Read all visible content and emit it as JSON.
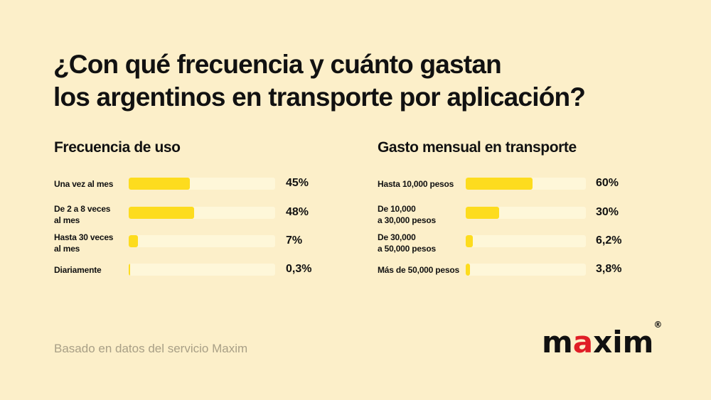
{
  "title": {
    "line1": "¿Con qué frecuencia y cuánto gastan",
    "line2": "los argentinos en transporte por aplicación?"
  },
  "colors": {
    "background": "#fcefc9",
    "bar_fill": "#fddc1e",
    "bar_track": "#fef7d9",
    "logo_accent": "#e01e26"
  },
  "chart_data": [
    {
      "type": "bar",
      "orientation": "horizontal",
      "title": "Frecuencia de uso",
      "categories": [
        "Una vez al mes",
        "De 2 a 8 veces\nal mes",
        "Hasta 30 veces\nal mes",
        "Diariamente"
      ],
      "values": [
        45,
        48,
        7,
        0.3
      ],
      "value_labels": [
        "45%",
        "48%",
        "7%",
        "0,3%"
      ],
      "unit": "%",
      "xlim": [
        0,
        100
      ]
    },
    {
      "type": "bar",
      "orientation": "horizontal",
      "title": "Gasto mensual en transporte",
      "categories": [
        "Hasta 10,000 pesos",
        "De 10,000\na 30,000 pesos",
        "De 30,000\na 50,000 pesos",
        "Más de 50,000 pesos"
      ],
      "values": [
        60,
        30,
        6.2,
        3.8
      ],
      "value_labels": [
        "60%",
        "30%",
        "6,2%",
        "3,8%"
      ],
      "unit": "%",
      "xlim": [
        0,
        100
      ]
    }
  ],
  "footer": {
    "source": "Basado en datos del servicio Maxim"
  },
  "logo": {
    "prefix": "m",
    "accent": "a",
    "suffix": "xim",
    "registered": "®"
  }
}
